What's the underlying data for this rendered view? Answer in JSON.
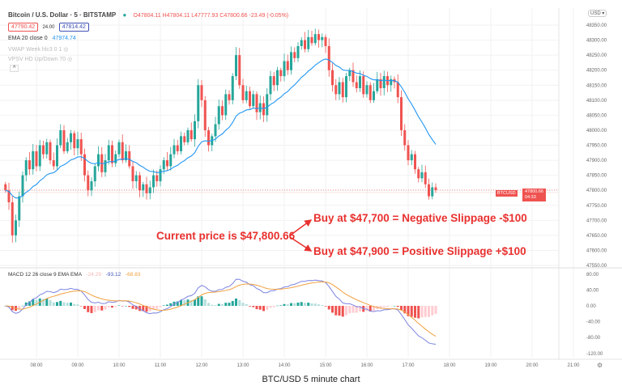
{
  "header": {
    "symbol": "Bitcoin / U.S. Dollar · 5 · BITSTAMP",
    "ohlc": "O47804.11 H47804.11 L47777.93 C47800.66 -23.49 (-0.05%)",
    "bid": "47790.42",
    "spread": "24.00",
    "ask": "47814.42",
    "ema_label": "EMA 20 close 0",
    "ema_value": "47974.74",
    "vwap_label": "VWAP Week hlc3 0 1",
    "vpsv_label": "VPSV HD Up/Down 70",
    "currency": "USD"
  },
  "macd": {
    "label": "MACD 12 26 close 9 EMA EMA",
    "hist": "-24.29",
    "macd": "-93.12",
    "signal": "-68.83"
  },
  "price_tag": {
    "symbol": "BTCUSD",
    "price": "47800.66",
    "countdown": "04:33"
  },
  "annotations": {
    "current": "Current price is $47,800.66",
    "negative": "Buy at $47,700 = Negative Slippage -$100",
    "positive": "Buy at $47,900 = Positive Slippage +$100"
  },
  "caption": "BTC/USD 5 minute chart",
  "colors": {
    "up": "#26a69a",
    "down": "#ef5350",
    "ema": "#2196f3",
    "macd": "#7b83e0",
    "signal": "#f0a040",
    "annotation": "#e8312f"
  },
  "chart_data": {
    "type": "candlestick",
    "interval": "5 minute",
    "start_time": "07:15",
    "price_ticks": [
      "48350.00",
      "48300.00",
      "48250.00",
      "48200.00",
      "48150.00",
      "48100.00",
      "48050.00",
      "48000.00",
      "47950.00",
      "47900.00",
      "47850.00",
      "47800.00",
      "47750.00",
      "47700.00",
      "47650.00",
      "47600.00",
      "47550.00"
    ],
    "macd_ticks": [
      "80.00",
      "40.00",
      "0.00",
      "-40.00",
      "-80.00",
      "-120.00"
    ],
    "time_ticks": [
      "08:00",
      "09:00",
      "10:00",
      "11:00",
      "12:00",
      "13:00",
      "14:00",
      "15:00",
      "16:00",
      "17:00",
      "18:00",
      "19:00",
      "20:00",
      "21:00"
    ],
    "ylim": [
      47550,
      48350
    ],
    "closes": [
      47800,
      47760,
      47650,
      47700,
      47780,
      47850,
      47900,
      47870,
      47930,
      47880,
      47950,
      47920,
      47960,
      47900,
      47880,
      47950,
      48000,
      47930,
      47960,
      47990,
      47940,
      47970,
      47920,
      47850,
      47800,
      47830,
      47880,
      47920,
      47860,
      47900,
      47950,
      47890,
      47920,
      47960,
      47900,
      47930,
      47880,
      47830,
      47850,
      47800,
      47820,
      47790,
      47810,
      47850,
      47830,
      47870,
      47900,
      47880,
      47920,
      47950,
      47930,
      47980,
      47960,
      48000,
      47970,
      48030,
      48150,
      48100,
      48000,
      47950,
      47980,
      48020,
      48080,
      48050,
      48120,
      48100,
      48180,
      48250,
      48150,
      48100,
      48130,
      48080,
      48120,
      48060,
      48090,
      48050,
      48120,
      48180,
      48150,
      48200,
      48180,
      48230,
      48200,
      48260,
      48240,
      48280,
      48300,
      48270,
      48310,
      48290,
      48320,
      48300,
      48310,
      48280,
      48200,
      48150,
      48120,
      48160,
      48110,
      48180,
      48200,
      48160,
      48140,
      48180,
      48120,
      48150,
      48100,
      48130,
      48170,
      48140,
      48180,
      48150,
      48170,
      48160,
      48110,
      48000,
      47950,
      47900,
      47920,
      47870,
      47840,
      47860,
      47820,
      47780,
      47810,
      47800.66
    ]
  }
}
